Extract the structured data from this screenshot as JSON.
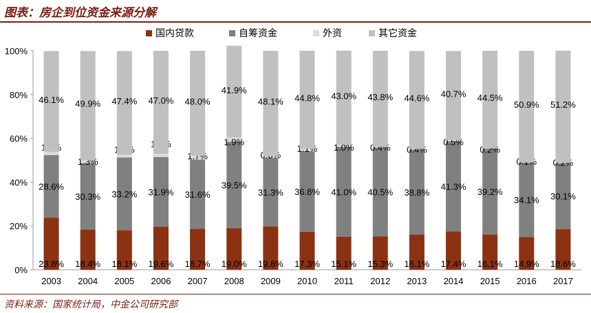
{
  "header": {
    "title": "图表：房企到位资金来源分解"
  },
  "footer": {
    "source": "资料来源：国家统计局，中金公司研究部"
  },
  "colors": {
    "accent": "#7a1c12",
    "domestic_loans": "#8b3213",
    "self_raised": "#808080",
    "foreign": "#dcdcdc",
    "other": "#c0c0c0"
  },
  "chart_data": {
    "type": "bar",
    "stacked": true,
    "title": "",
    "xlabel": "",
    "ylabel": "",
    "ylim": [
      0,
      100
    ],
    "yticks": [
      "0%",
      "20%",
      "40%",
      "60%",
      "80%",
      "100%"
    ],
    "legend_position": "top",
    "categories": [
      "2003",
      "2004",
      "2005",
      "2006",
      "2007",
      "2008",
      "2009",
      "2010",
      "2011",
      "2012",
      "2013",
      "2014",
      "2015",
      "2016",
      "2017"
    ],
    "series": [
      {
        "name": "国内贷款",
        "color": "#8b3213",
        "values": [
          23.8,
          18.4,
          18.1,
          19.6,
          18.7,
          19.0,
          19.8,
          17.3,
          15.1,
          15.3,
          16.1,
          17.4,
          16.1,
          14.9,
          18.6
        ],
        "labels": [
          "23.8%",
          "18.4%",
          "18.1%",
          "19.6%",
          "18.7%",
          "19.0%",
          "19.8%",
          "17.3%",
          "15.1%",
          "15.3%",
          "16.1%",
          "17.4%",
          "16.1%",
          "14.9%",
          "18.6%"
        ]
      },
      {
        "name": "自筹资金",
        "color": "#808080",
        "values": [
          28.6,
          30.3,
          33.2,
          31.9,
          31.6,
          39.5,
          31.3,
          36.8,
          41.0,
          40.5,
          38.8,
          41.3,
          39.2,
          34.1,
          30.1
        ],
        "labels": [
          "28.6%",
          "30.3%",
          "33.2%",
          "31.9%",
          "31.6%",
          "39.5%",
          "31.3%",
          "36.8%",
          "41.0%",
          "40.5%",
          "38.8%",
          "41.3%",
          "39.2%",
          "34.1%",
          "30.1%"
        ]
      },
      {
        "name": "外资",
        "color": "#dcdcdc",
        "values": [
          1.4,
          1.3,
          1.2,
          1.5,
          1.7,
          1.9,
          0.8,
          1.1,
          1.0,
          0.4,
          0.4,
          0.5,
          0.2,
          0.1,
          0.2
        ],
        "labels": [
          "1.4%",
          "1.3%",
          "1.2%",
          "1.5%",
          "1.7%",
          "1.9%",
          "0.8%",
          "1.1%",
          "1.0%",
          "0.4%",
          "0.4%",
          "0.5%",
          "0.2%",
          "0.1%",
          "0.2%"
        ]
      },
      {
        "name": "其它资金",
        "color": "#c0c0c0",
        "values": [
          46.1,
          49.9,
          47.4,
          47.0,
          48.0,
          41.9,
          48.1,
          44.8,
          43.0,
          43.8,
          44.6,
          40.7,
          44.5,
          50.9,
          51.2
        ],
        "labels": [
          "46.1%",
          "49.9%",
          "47.4%",
          "47.0%",
          "48.0%",
          "41.9%",
          "48.1%",
          "44.8%",
          "43.0%",
          "43.8%",
          "44.6%",
          "40.7%",
          "44.5%",
          "50.9%",
          "51.2%"
        ]
      }
    ],
    "label_positions": {
      "foreign": [
        {
          "y": 56.0
        },
        {
          "y": 49.5
        },
        {
          "y": 55.0
        },
        {
          "y": 57.5
        },
        {
          "y": 52.0
        },
        {
          "y": 58.5
        },
        {
          "y": 52.5
        },
        {
          "y": 55.5
        },
        {
          "y": 56.0
        },
        {
          "y": 56.0
        },
        {
          "y": 55.0
        },
        {
          "y": 58.5
        },
        {
          "y": 55.0
        },
        {
          "y": 49.5
        },
        {
          "y": 49.0
        }
      ]
    }
  }
}
